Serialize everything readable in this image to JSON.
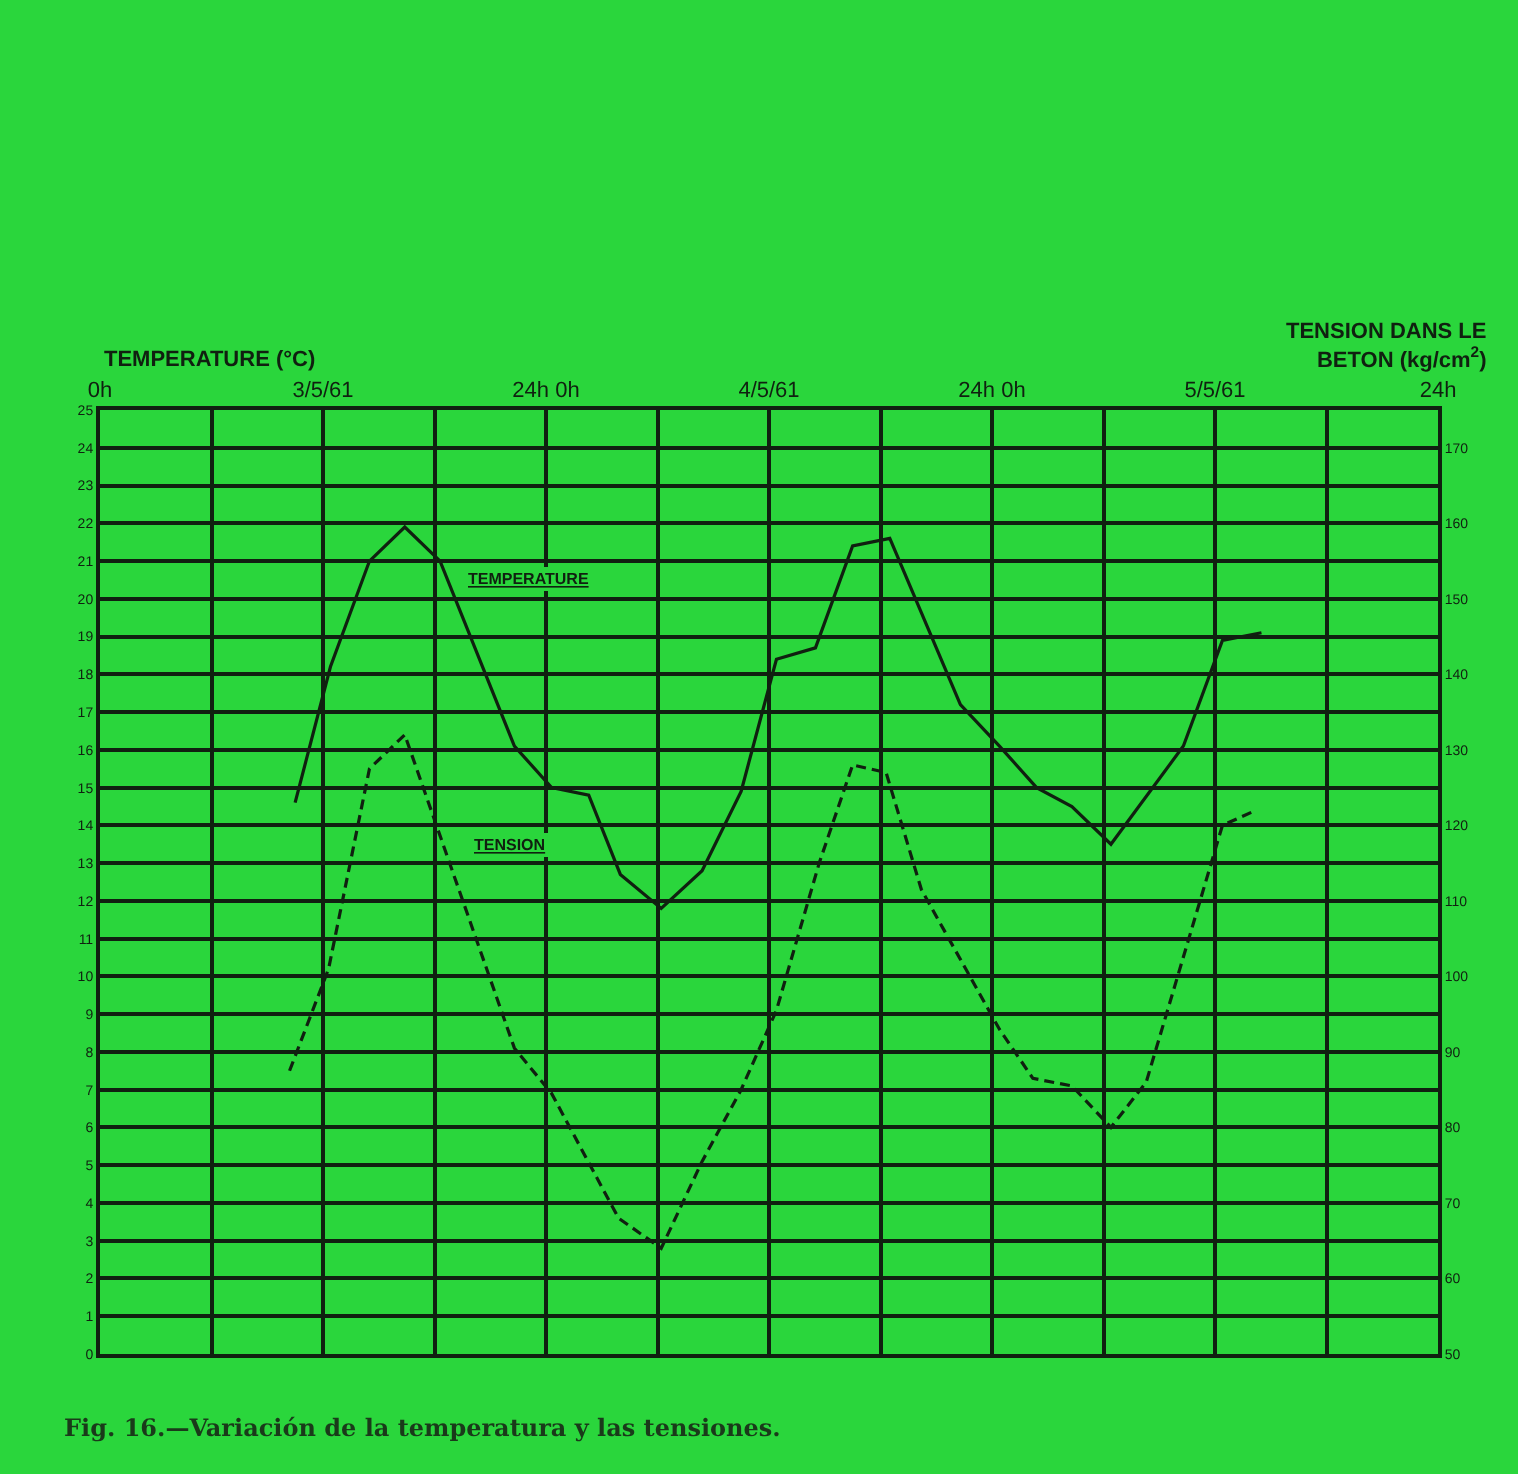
{
  "chart_data": {
    "type": "line",
    "ylabel": "TEMPERATURE (°C)",
    "y2label": "TENSION DANS LE\nBETON (kg/cm$^{2}$)",
    "annotations": [
      "Fig. 16.—Variación de la temperatura y las tensiones."
    ],
    "xlim": [
      "1961-05-03T00:00",
      "1961-05-06T00:00"
    ],
    "xticks": [
      {
        "value": "1961-05-03T00:00",
        "label": "0h"
      },
      {
        "value": "1961-05-03T06:00",
        "label": null
      },
      {
        "value": "1961-05-03T12:00",
        "label": "3/5/61"
      },
      {
        "value": "1961-05-03T18:00",
        "label": null
      },
      {
        "value": "1961-05-04T00:00",
        "label": "24h 0h"
      },
      {
        "value": "1961-05-04T06:00",
        "label": null
      },
      {
        "value": "1961-05-04T12:00",
        "label": "4/5/61"
      },
      {
        "value": "1961-05-04T18:00",
        "label": null
      },
      {
        "value": "1961-05-05T00:00",
        "label": "24h 0h"
      },
      {
        "value": "1961-05-05T06:00",
        "label": null
      },
      {
        "value": "1961-05-05T12:00",
        "label": "5/5/61"
      },
      {
        "value": "1961-05-05T18:00",
        "label": null
      },
      {
        "value": "1961-05-06T00:00",
        "label": "24h"
      }
    ],
    "ylim": [
      0,
      25
    ],
    "yticks": [
      0,
      1,
      2,
      3,
      4,
      5,
      6,
      7,
      8,
      9,
      10,
      11,
      12,
      13,
      14,
      15,
      16,
      17,
      18,
      19,
      20,
      21,
      22,
      23,
      24,
      25
    ],
    "y2lim": [
      50,
      175
    ],
    "y2ticks": [
      50,
      60,
      70,
      80,
      90,
      100,
      110,
      120,
      130,
      140,
      150,
      160,
      170
    ],
    "grid": true,
    "legend": false,
    "marker": "none",
    "series": [
      {
        "name": "TEMPERATURE",
        "color": "#102010",
        "line_style": "solid",
        "x": [
          "1961-05-03T10:30",
          "1961-05-03T12:24",
          "1961-05-03T14:30",
          "1961-05-03T16:24",
          "1961-05-03T18:18",
          "1961-05-03T22:18",
          "1961-05-04T00:18",
          "1961-05-04T02:18",
          "1961-05-04T04:00",
          "1961-05-04T06:12",
          "1961-05-04T08:24",
          "1961-05-04T10:30",
          "1961-05-04T12:24",
          "1961-05-04T14:30",
          "1961-05-04T16:30",
          "1961-05-04T18:30",
          "1961-05-04T22:18",
          "1961-05-05T00:24",
          "1961-05-05T02:24",
          "1961-05-05T04:18",
          "1961-05-05T06:24",
          "1961-05-05T10:18",
          "1961-05-05T12:24",
          "1961-05-05T14:30"
        ],
        "values": [
          14.6,
          18.2,
          21.0,
          21.9,
          21.0,
          16.1,
          15.0,
          14.8,
          12.7,
          11.8,
          12.8,
          14.9,
          18.4,
          18.7,
          21.4,
          21.6,
          17.2,
          16.1,
          15.0,
          14.5,
          13.5,
          16.1,
          18.9,
          19.1
        ]
      },
      {
        "name": "TENSION",
        "color": "#102010",
        "line_style": "dashed",
        "axis": "y2",
        "x": [
          "1961-05-03T10:12",
          "1961-05-03T12:18",
          "1961-05-03T14:30",
          "1961-05-03T16:24",
          "1961-05-03T18:36",
          "1961-05-03T22:18",
          "1961-05-04T00:18",
          "1961-05-04T03:54",
          "1961-05-04T06:12",
          "1961-05-04T08:24",
          "1961-05-04T10:30",
          "1961-05-04T12:24",
          "1961-05-04T14:42",
          "1961-05-04T16:30",
          "1961-05-04T18:18",
          "1961-05-04T20:12",
          "1961-05-05T00:24",
          "1961-05-05T02:12",
          "1961-05-05T04:18",
          "1961-05-05T06:24",
          "1961-05-05T08:18",
          "1961-05-05T12:24",
          "1961-05-05T14:12"
        ],
        "values": [
          87.5,
          101,
          127.5,
          132,
          116.5,
          90.5,
          84.5,
          68,
          64,
          75.5,
          85,
          95.5,
          115,
          128,
          127,
          111.5,
          93,
          86.5,
          85.5,
          80,
          86,
          120,
          122
        ]
      }
    ]
  }
}
